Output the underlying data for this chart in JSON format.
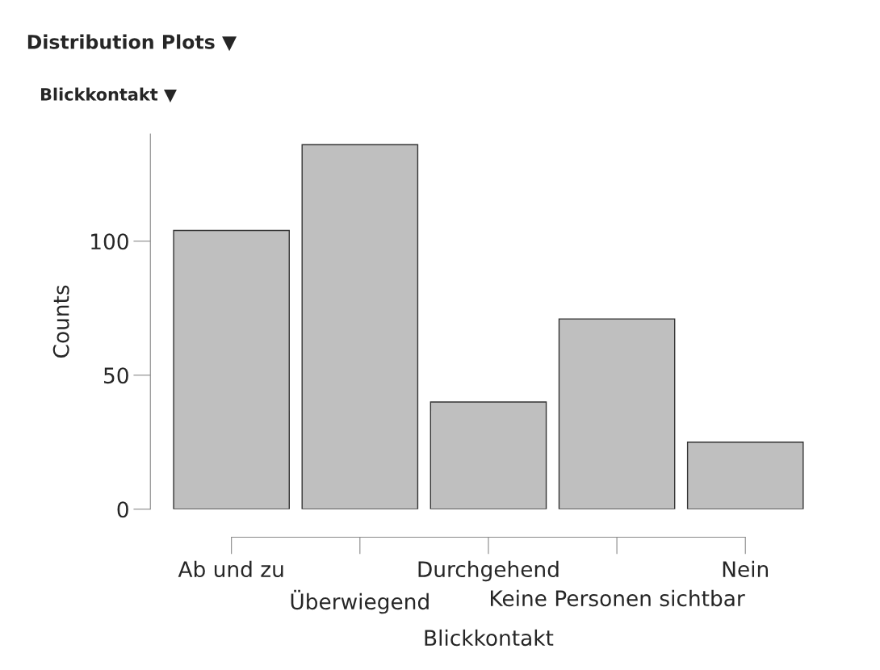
{
  "chart_data": {
    "type": "bar",
    "title": "Distribution Plots ▼",
    "subtitle": "Blickkontakt ▼",
    "xlabel": "Blickkontakt",
    "ylabel": "Counts",
    "categories": [
      "Ab und zu",
      "Überwiegend",
      "Durchgehend",
      "Keine Personen sichtbar",
      "Nein"
    ],
    "values": [
      104,
      136,
      40,
      71,
      25
    ],
    "color": "#bfbfbf",
    "ylim": [
      0,
      140
    ],
    "yticks": [
      0,
      50,
      100
    ]
  }
}
